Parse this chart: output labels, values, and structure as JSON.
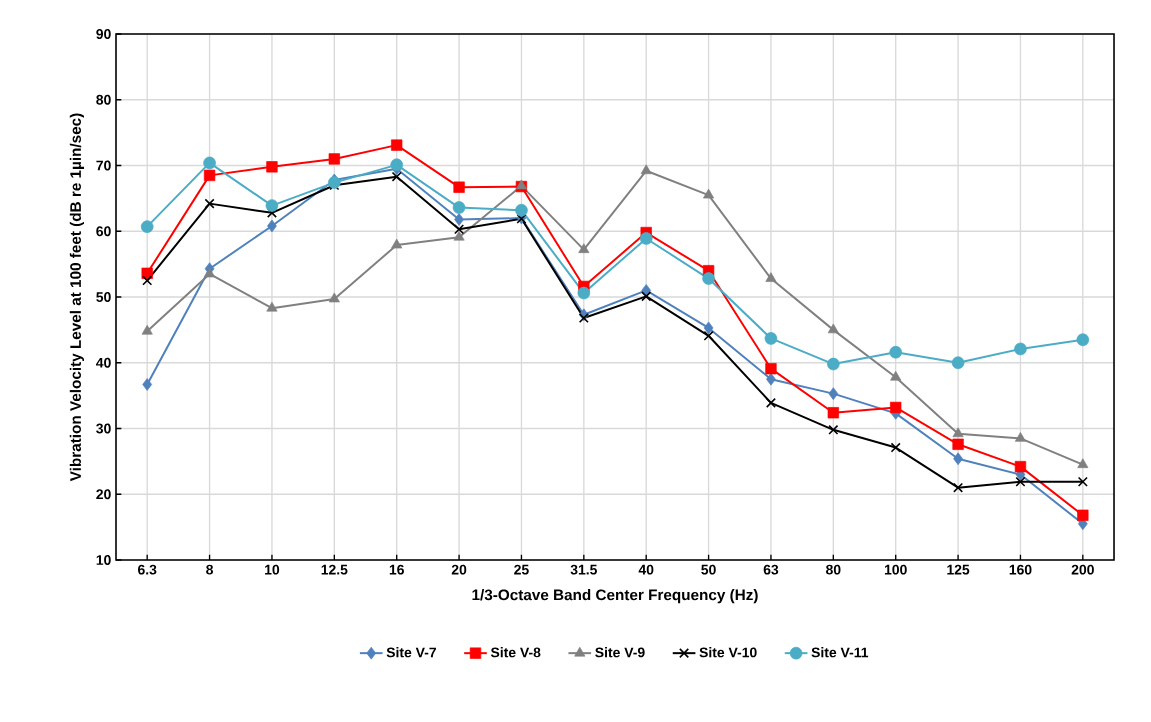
{
  "chart_data": {
    "type": "line",
    "xlabel": "1/3-Octave Band Center Frequency (Hz)",
    "ylabel": "Vibration  Velocity Level at 100 feet (dB re 1µin/sec)",
    "categories": [
      "6.3",
      "8",
      "10",
      "12.5",
      "16",
      "20",
      "25",
      "31.5",
      "40",
      "50",
      "63",
      "80",
      "100",
      "125",
      "160",
      "200"
    ],
    "ylim": [
      10,
      90
    ],
    "yticks": [
      10,
      20,
      30,
      40,
      50,
      60,
      70,
      80,
      90
    ],
    "grid": true,
    "legend": "bottom",
    "series": [
      {
        "name": "Site V-7",
        "color": "#4f81bd",
        "marker": "diamond",
        "values": [
          36.7,
          54.3,
          60.8,
          67.8,
          69.5,
          61.8,
          62,
          47.3,
          51,
          45.3,
          37.5,
          35.3,
          32.3,
          25.4,
          23,
          15.5
        ]
      },
      {
        "name": "Site V-8",
        "color": "#ff0000",
        "marker": "square",
        "values": [
          53.6,
          68.5,
          69.8,
          71,
          73.1,
          66.7,
          66.8,
          51.6,
          59.8,
          54,
          39.1,
          32.4,
          33.2,
          27.6,
          24.2,
          16.8
        ]
      },
      {
        "name": "Site V-9",
        "color": "#808080",
        "marker": "triangle",
        "values": [
          44.8,
          53.5,
          48.3,
          49.7,
          57.9,
          59.1,
          66.9,
          57.2,
          69.2,
          65.5,
          52.8,
          45,
          37.8,
          29.2,
          28.5,
          24.5
        ]
      },
      {
        "name": "Site V-10",
        "color": "#000000",
        "marker": "cross",
        "values": [
          52.5,
          64.2,
          62.8,
          67,
          68.3,
          60.3,
          61.9,
          46.8,
          50.1,
          44.1,
          33.9,
          29.8,
          27.1,
          21,
          21.9,
          21.9
        ]
      },
      {
        "name": "Site V-11",
        "color": "#4bacc6",
        "marker": "circle",
        "values": [
          60.7,
          70.4,
          63.9,
          67.4,
          70.1,
          63.6,
          63.2,
          50.6,
          58.9,
          52.8,
          43.7,
          39.8,
          41.6,
          40,
          42.1,
          43.5
        ]
      }
    ]
  }
}
